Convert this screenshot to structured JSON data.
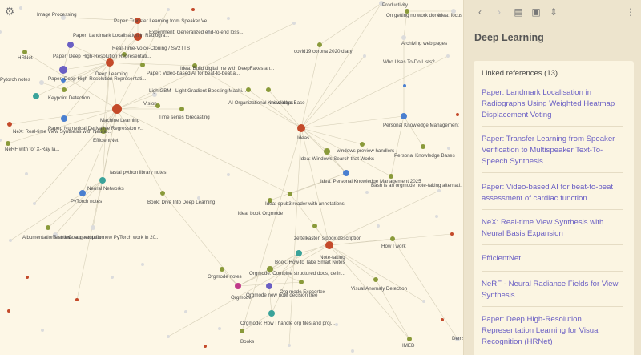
{
  "sidebar": {
    "toolbar": {
      "back_icon": "chevron-left-icon",
      "forward_icon": "chevron-right-icon",
      "toggle_icon": "panel-icon",
      "doc_icon": "document-icon",
      "filter_icon": "filter-icon",
      "more_icon": "more-vertical-icon"
    },
    "page_title": "Deep Learning",
    "linked_heading": "Linked references (13)",
    "references": [
      "Paper: Landmark Localisation in Radiographs Using Weighted Heatmap Displacement Voting",
      "Paper: Transfer Learning from Speaker Verification to Multispeaker Text-To-Speech Synthesis",
      "Paper: Video-based AI for beat-to-beat assessment of cardiac function",
      "NeX: Real-time View Synthesis with Neural Basis Expansion",
      "EfficientNet",
      "NeRF - Neural Radiance Fields for View Synthesis",
      "Paper: Deep High-Resolution Representation Learning for Visual Recognition (HRNet)"
    ]
  },
  "graph": {
    "settings_icon": "gear-icon",
    "labels": [
      "Image Processing",
      "Paper: Transfer Learning from Speaker Ve...",
      "Paper: Landmark Localisation in Radiogra...",
      "Experiment: Generalized end-to-end loss ...",
      "Real-Time-Voice-Cloning / SV2TTS",
      "HRNet",
      "Paper: Deep High-Resolution Representati...",
      "Deep Learning",
      "Paper: Video-based AI for beat-to-beat a...",
      "Idea: Build digital me with DeepFakes an...",
      "Paper: Deep High-Resolution Representati...",
      "Pytorch notes",
      "Keypoint Detection",
      "LightGBM - Light Gradient Boosting Machi...",
      "Vision",
      "AI Organizational Knowledge Base",
      "misc ideas",
      "Machine Learning",
      "Time series forecasting",
      "Paper: Numerical Derivative Regression v...",
      "NeX: Real-time View Synthesis with Neura...",
      "NeRF with for X-Ray la...",
      "EfficientNet",
      "Ideas",
      "Personal Knowledge Management",
      "Personal Knowledge Bases",
      "windows preview handlers",
      "Idea: Windows Search that Works",
      "Idea: Personal Knowledge Management 2025",
      "Bash is an orgmode note-taking alternati...",
      "fastai python library notes",
      "Neural Networks",
      "PyTorch notes",
      "Book: Dive Into Deep Learning",
      "Idea: epub3 reader with annotations",
      "idea: book Orgmode",
      "Albumentations notes",
      "Test time augmentation",
      "Colab setup for new PyTorch work in 20...",
      "zettelkasten sipbox description",
      "Note-taking",
      "How I work",
      "Book: How to Take Smart Notes",
      "Orgmode notes",
      "Orgmode: Combine structured docs, defin...",
      "Org mode Exocortex",
      "Orgmode",
      "Orgmode new note decision tree",
      "Visual Anomaly Detection",
      "Orgmode: How I handle org files and proj...",
      "Books",
      "Productivity",
      "On getting no work done",
      "Idea: focus app Windows",
      "covid19 corona 2020 diary",
      "Archiving web pages",
      "Who Uses To-Do Lists?",
      "IMED",
      "Dems"
    ]
  }
}
